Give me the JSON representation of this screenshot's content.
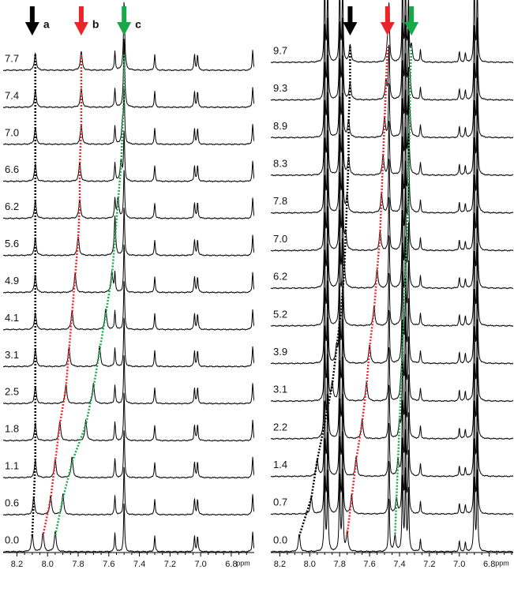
{
  "chart_data": [
    {
      "type": "spectrum",
      "xlabel": "ppm",
      "xlim": [
        8.29,
        6.65
      ],
      "xticks": [
        8.2,
        {
          "value": 8,
          "label": "8.0"
        },
        7.8,
        7.6,
        7.4,
        7.2,
        {
          "value": 7,
          "label": "7.0"
        },
        6.8
      ],
      "arrows": [
        {
          "label": "a",
          "color": "#000000",
          "ppm": 8.1
        },
        {
          "label": "b",
          "color": "#e8262a",
          "ppm": 7.78
        },
        {
          "label": "c",
          "color": "#1aa64a",
          "ppm": 7.5
        }
      ],
      "static_peaks": [
        [
          7.56,
          0.6
        ],
        [
          7.5,
          1.6
        ],
        [
          7.3,
          0.5
        ],
        [
          7.04,
          0.5
        ],
        [
          7.02,
          0.5
        ],
        [
          6.66,
          0.65
        ]
      ],
      "traces": [
        {
          "label": "7.7",
          "a": 8.08,
          "b": 7.78,
          "c": 7.5
        },
        {
          "label": "7.4",
          "a": 8.08,
          "b": 7.78,
          "c": 7.5
        },
        {
          "label": "7.0",
          "a": 8.08,
          "b": 7.78,
          "c": 7.51
        },
        {
          "label": "6.6",
          "a": 8.08,
          "b": 7.79,
          "c": 7.52
        },
        {
          "label": "6.2",
          "a": 8.08,
          "b": 7.79,
          "c": 7.54
        },
        {
          "label": "5.6",
          "a": 8.08,
          "b": 7.8,
          "c": 7.56
        },
        {
          "label": "4.9",
          "a": 8.08,
          "b": 7.82,
          "c": 7.58
        },
        {
          "label": "4.1",
          "a": 8.08,
          "b": 7.84,
          "c": 7.62
        },
        {
          "label": "3.1",
          "a": 8.08,
          "b": 7.86,
          "c": 7.66
        },
        {
          "label": "2.5",
          "a": 8.08,
          "b": 7.88,
          "c": 7.7
        },
        {
          "label": "1.8",
          "a": 8.08,
          "b": 7.92,
          "c": 7.75
        },
        {
          "label": "1.1",
          "a": 8.08,
          "b": 7.95,
          "c": 7.84
        },
        {
          "label": "0.6",
          "a": 8.09,
          "b": 7.98,
          "c": 7.9
        },
        {
          "label": "0.0",
          "a": 8.1,
          "b": 8.03,
          "c": 7.95
        }
      ]
    },
    {
      "type": "spectrum",
      "xlabel": "ppm",
      "xlim": [
        8.26,
        6.64
      ],
      "xticks": [
        8.2,
        {
          "value": 8,
          "label": "8.0"
        },
        7.8,
        7.6,
        7.4,
        7.2,
        {
          "value": 7,
          "label": "7.0"
        },
        6.8
      ],
      "arrows": [
        {
          "color": "#000000",
          "ppm": 7.73
        },
        {
          "color": "#e8262a",
          "ppm": 7.48
        },
        {
          "color": "#1aa64a",
          "ppm": 7.32
        }
      ],
      "static_peaks": [
        [
          7.9,
          2.5
        ],
        [
          7.88,
          2.5
        ],
        [
          7.8,
          2.5
        ],
        [
          7.78,
          2.5
        ],
        [
          7.47,
          1.8
        ],
        [
          7.38,
          2.5
        ],
        [
          7.36,
          2.5
        ],
        [
          7.34,
          2.0
        ],
        [
          7.26,
          0.4
        ],
        [
          7.0,
          0.35
        ],
        [
          6.96,
          0.3
        ],
        [
          6.9,
          2.5
        ],
        [
          6.88,
          2.5
        ],
        [
          6.6,
          0.4
        ]
      ],
      "traces": [
        {
          "label": "9.7",
          "a": 7.73,
          "b": 7.48,
          "c": 7.32
        },
        {
          "label": "9.3",
          "a": 7.73,
          "b": 7.49,
          "c": 7.33
        },
        {
          "label": "8.9",
          "a": 7.74,
          "b": 7.5,
          "c": 7.33
        },
        {
          "label": "8.3",
          "a": 7.74,
          "b": 7.51,
          "c": 7.34
        },
        {
          "label": "7.8",
          "a": 7.75,
          "b": 7.52,
          "c": 7.34
        },
        {
          "label": "7.0",
          "a": 7.76,
          "b": 7.53,
          "c": 7.35
        },
        {
          "label": "6.2",
          "a": 7.77,
          "b": 7.55,
          "c": 7.36
        },
        {
          "label": "5.2",
          "a": 7.79,
          "b": 7.57,
          "c": 7.37
        },
        {
          "label": "3.9",
          "a": 7.82,
          "b": 7.6,
          "c": 7.38
        },
        {
          "label": "3.1",
          "a": 7.85,
          "b": 7.62,
          "c": 7.39
        },
        {
          "label": "2.2",
          "a": 7.9,
          "b": 7.65,
          "c": 7.4
        },
        {
          "label": "1.4",
          "a": 7.95,
          "b": 7.69,
          "c": 7.41
        },
        {
          "label": "0.7",
          "a": 7.99,
          "b": 7.72,
          "c": 7.42
        },
        {
          "label": "0.0",
          "a": 8.07,
          "b": 7.75,
          "c": 7.43
        }
      ]
    }
  ]
}
